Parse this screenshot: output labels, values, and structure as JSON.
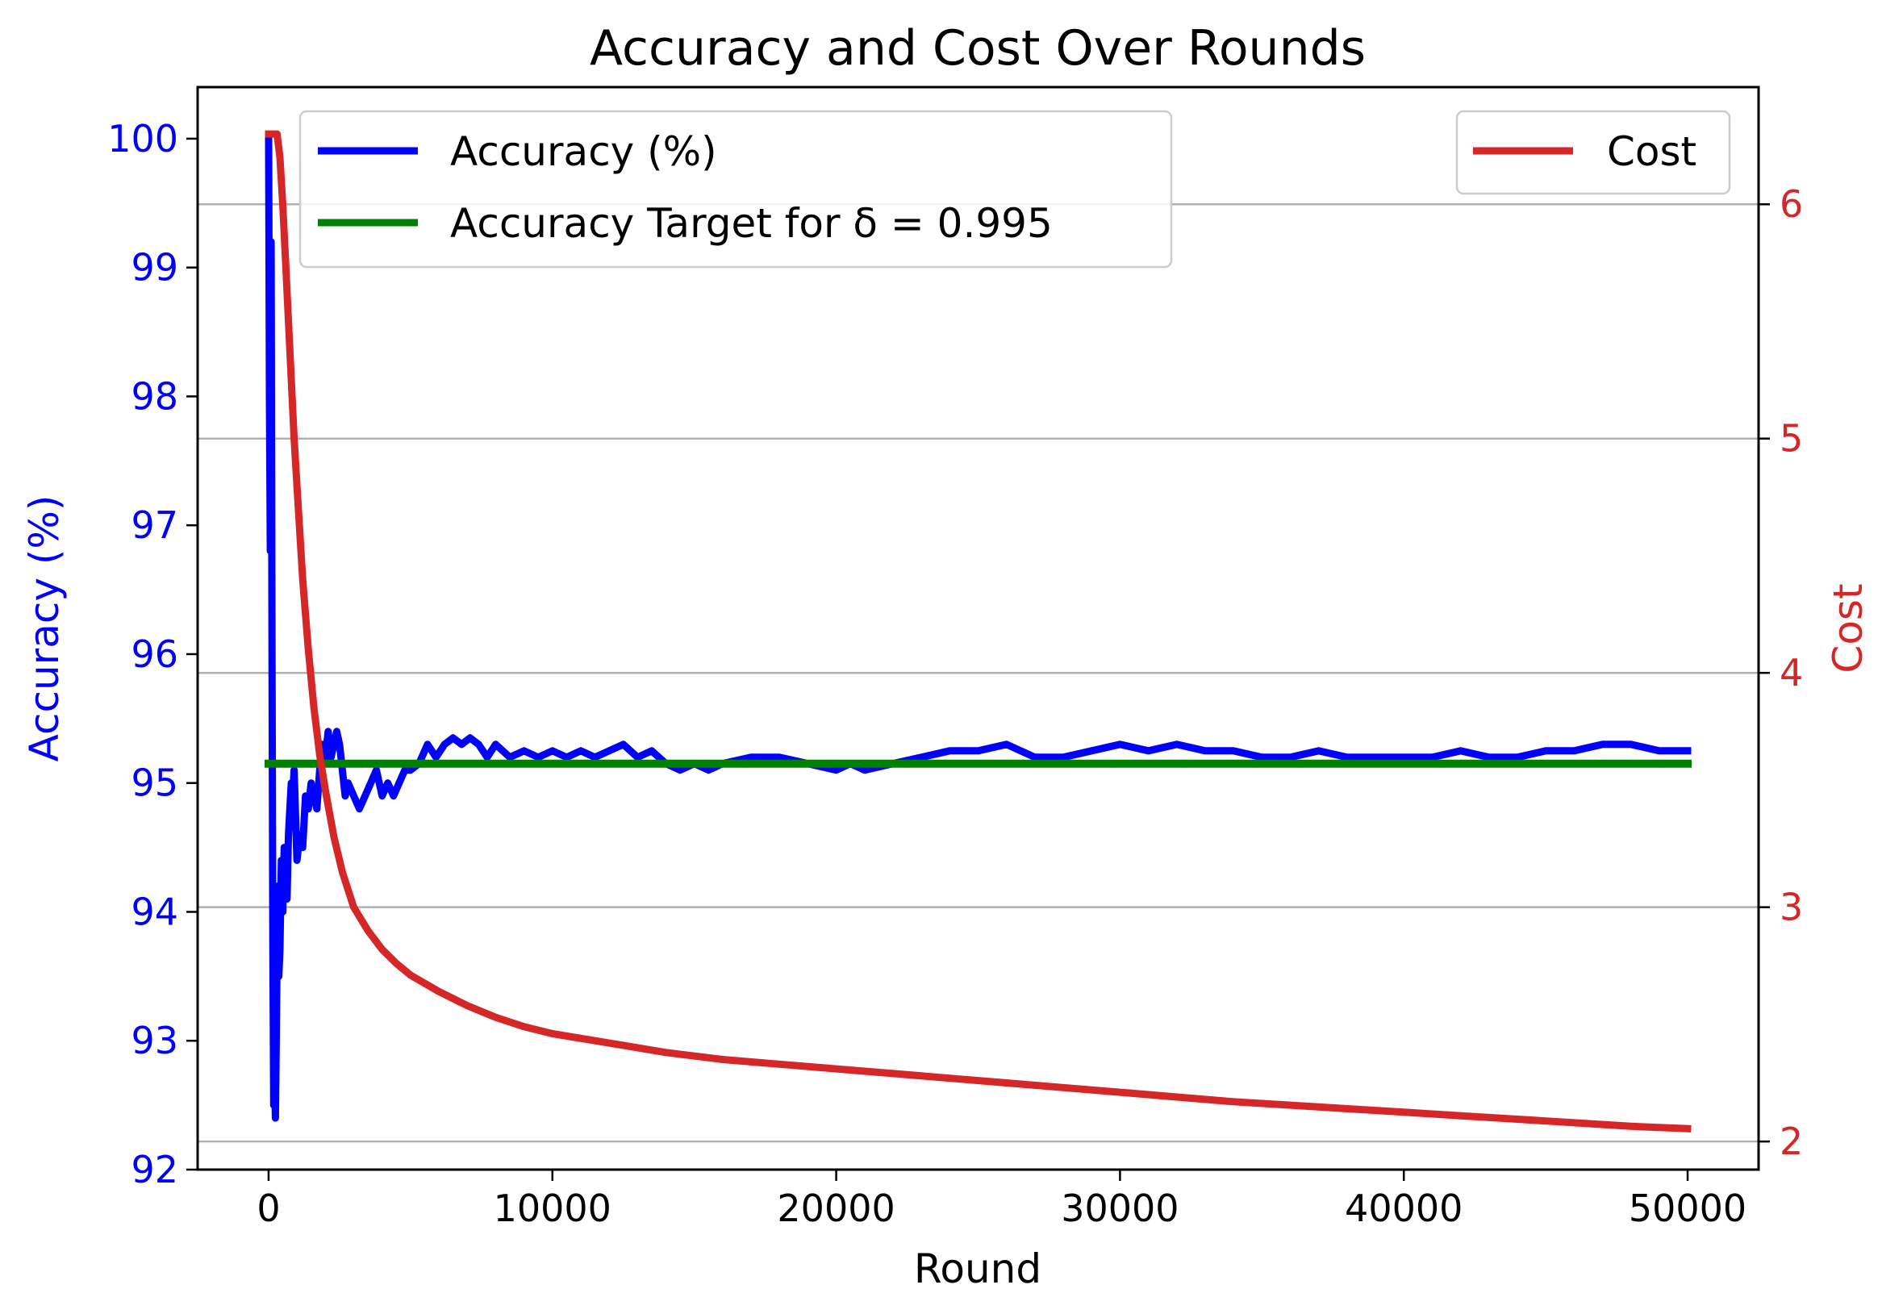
{
  "chart_data": {
    "type": "line",
    "title": "Accuracy and Cost Over Rounds",
    "xlabel": "Round",
    "ylabel": "Accuracy (%)",
    "ylabel_right": "Cost",
    "xlim": [
      -2500,
      52500
    ],
    "ylim": [
      92,
      100.4
    ],
    "ylim_right": [
      1.88,
      6.5
    ],
    "x_ticks": [
      "0",
      "10000",
      "20000",
      "30000",
      "40000",
      "50000"
    ],
    "y_ticks": [
      "92",
      "93",
      "94",
      "95",
      "96",
      "97",
      "98",
      "99",
      "100"
    ],
    "y_ticks_right": [
      "2",
      "3",
      "4",
      "5",
      "6"
    ],
    "grid": "horizontal lines at right-axis ticks",
    "legend_left": {
      "placement": "upper-left"
    },
    "legend_right": {
      "placement": "upper-right"
    },
    "series": [
      {
        "name": "Accuracy (%)",
        "axis": "left",
        "color": "#0000ff",
        "x": [
          0,
          30,
          60,
          90,
          120,
          150,
          180,
          210,
          240,
          280,
          320,
          360,
          400,
          450,
          500,
          550,
          600,
          650,
          700,
          750,
          800,
          850,
          900,
          1000,
          1100,
          1200,
          1300,
          1400,
          1500,
          1600,
          1700,
          1800,
          1900,
          2000,
          2100,
          2200,
          2300,
          2400,
          2500,
          2600,
          2700,
          2800,
          3000,
          3200,
          3400,
          3600,
          3800,
          4000,
          4200,
          4400,
          4600,
          4800,
          5000,
          5300,
          5600,
          5900,
          6200,
          6500,
          6800,
          7100,
          7400,
          7700,
          8000,
          8500,
          9000,
          9500,
          10000,
          10500,
          11000,
          11500,
          12000,
          12500,
          13000,
          13500,
          14000,
          14500,
          15000,
          15500,
          16000,
          17000,
          18000,
          19000,
          20000,
          20500,
          21000,
          22000,
          23000,
          24000,
          25000,
          26000,
          27000,
          28000,
          29000,
          30000,
          31000,
          32000,
          33000,
          34000,
          35000,
          36000,
          37000,
          38000,
          39000,
          40000,
          41000,
          42000,
          43000,
          44000,
          45000,
          46000,
          47000,
          48000,
          49000,
          50000
        ],
        "values": [
          100,
          98.0,
          96.8,
          99.2,
          96.0,
          93.8,
          92.5,
          92.8,
          92.4,
          93.2,
          94.2,
          93.5,
          93.7,
          94.4,
          94.0,
          94.5,
          94.2,
          94.1,
          94.6,
          94.8,
          95.0,
          94.9,
          95.1,
          94.4,
          94.6,
          94.5,
          94.9,
          94.8,
          95.0,
          94.9,
          94.8,
          95.1,
          95.3,
          95.2,
          95.4,
          95.2,
          95.3,
          95.4,
          95.3,
          95.1,
          94.9,
          95.0,
          94.9,
          94.8,
          94.9,
          95.0,
          95.1,
          94.9,
          95.0,
          94.9,
          95.0,
          95.1,
          95.1,
          95.15,
          95.3,
          95.2,
          95.3,
          95.35,
          95.3,
          95.35,
          95.3,
          95.2,
          95.3,
          95.2,
          95.25,
          95.2,
          95.25,
          95.2,
          95.25,
          95.2,
          95.25,
          95.3,
          95.2,
          95.25,
          95.15,
          95.1,
          95.15,
          95.1,
          95.15,
          95.2,
          95.2,
          95.15,
          95.1,
          95.15,
          95.1,
          95.15,
          95.2,
          95.25,
          95.25,
          95.3,
          95.2,
          95.2,
          95.25,
          95.3,
          95.25,
          95.3,
          95.25,
          95.25,
          95.2,
          95.2,
          95.25,
          95.2,
          95.2,
          95.2,
          95.2,
          95.25,
          95.2,
          95.2,
          95.25,
          95.25,
          95.3,
          95.3,
          95.25,
          95.25
        ]
      },
      {
        "name": "Accuracy Target for δ = 0.995",
        "axis": "left",
        "color": "#008000",
        "x": [
          0,
          50000
        ],
        "values": [
          95.15,
          95.15
        ]
      },
      {
        "name": "Cost",
        "axis": "right",
        "color": "#d62728",
        "x": [
          0,
          200,
          300,
          400,
          500,
          600,
          700,
          800,
          900,
          1000,
          1200,
          1400,
          1600,
          1800,
          2000,
          2300,
          2600,
          3000,
          3500,
          4000,
          4500,
          5000,
          6000,
          7000,
          8000,
          9000,
          10000,
          12000,
          14000,
          16000,
          18000,
          20000,
          22000,
          24000,
          26000,
          28000,
          30000,
          32000,
          34000,
          36000,
          38000,
          40000,
          42000,
          44000,
          46000,
          48000,
          50000
        ],
        "values": [
          6.3,
          6.3,
          6.3,
          6.2,
          6.0,
          5.75,
          5.5,
          5.25,
          5.0,
          4.8,
          4.4,
          4.1,
          3.85,
          3.65,
          3.5,
          3.3,
          3.15,
          3.0,
          2.9,
          2.82,
          2.76,
          2.71,
          2.64,
          2.58,
          2.53,
          2.49,
          2.46,
          2.42,
          2.38,
          2.35,
          2.33,
          2.31,
          2.29,
          2.27,
          2.25,
          2.23,
          2.21,
          2.19,
          2.17,
          2.155,
          2.14,
          2.125,
          2.11,
          2.095,
          2.08,
          2.065,
          2.055
        ]
      }
    ]
  }
}
